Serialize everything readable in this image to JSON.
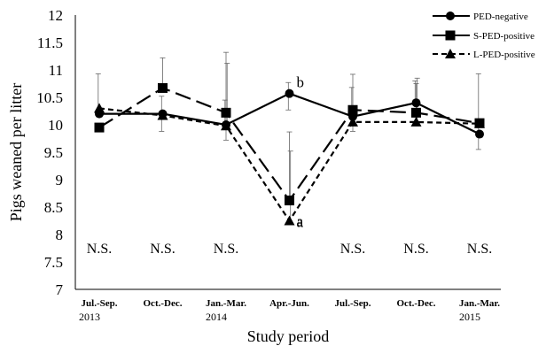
{
  "chart_data": {
    "type": "line",
    "xlabel": "Study period",
    "ylabel": "Pigs weaned per litter",
    "ylim": [
      7,
      12
    ],
    "yticks": [
      "12",
      "11.5",
      "11",
      "10.5",
      "10",
      "9.5",
      "9",
      "8.5",
      "8",
      "7.5",
      "7"
    ],
    "grid": false,
    "legend_position": "top-right",
    "categories": [
      "Jul.-Sep.",
      "Oct.-Dec.",
      "Jan.-Mar.",
      "Apr.-Jun.",
      "Jul.-Sep.",
      "Oct.-Dec.",
      "Jan.-Mar."
    ],
    "year_labels": [
      {
        "index": 0,
        "text": "2013"
      },
      {
        "index": 2,
        "text": "2014"
      },
      {
        "index": 6,
        "text": "2015"
      }
    ],
    "series": [
      {
        "name": "PED-negative",
        "marker": "circle",
        "dash": "solid",
        "values": [
          10.2,
          10.2,
          10.0,
          10.57,
          10.15,
          10.4,
          9.83
        ],
        "err_upper": [
          10.93,
          10.52,
          10.45,
          10.77,
          10.68,
          10.8,
          10.93
        ],
        "err_lower": [
          null,
          9.88,
          null,
          10.27,
          null,
          null,
          9.55
        ]
      },
      {
        "name": "S-PED-positive",
        "marker": "square",
        "dash": "long-dash",
        "values": [
          9.95,
          10.67,
          10.22,
          8.62,
          10.27,
          10.22,
          10.03
        ],
        "err_upper": [
          null,
          11.22,
          11.32,
          9.87,
          10.92,
          10.75,
          null
        ],
        "err_lower": [
          null,
          null,
          9.72,
          null,
          9.88,
          null,
          null
        ]
      },
      {
        "name": "L-PED-positive",
        "marker": "triangle",
        "dash": "short-dash",
        "values": [
          10.3,
          10.17,
          9.98,
          8.25,
          10.05,
          10.05,
          10.02
        ],
        "err_upper": [
          null,
          null,
          11.12,
          9.52,
          null,
          10.85,
          null
        ],
        "err_lower": [
          null,
          null,
          null,
          null,
          null,
          null,
          null
        ]
      }
    ],
    "annotations": [
      {
        "text": "N.S.",
        "index": 0
      },
      {
        "text": "N.S.",
        "index": 1
      },
      {
        "text": "N.S.",
        "index": 2
      },
      {
        "text": "N.S.",
        "index": 4
      },
      {
        "text": "N.S.",
        "index": 5
      },
      {
        "text": "N.S.",
        "index": 6
      }
    ],
    "significance_labels": [
      {
        "text": "b",
        "index": 3,
        "series": 0
      },
      {
        "text": "a",
        "index": 3,
        "series": 1
      },
      {
        "text": "a",
        "index": 3,
        "series": 2
      }
    ]
  }
}
